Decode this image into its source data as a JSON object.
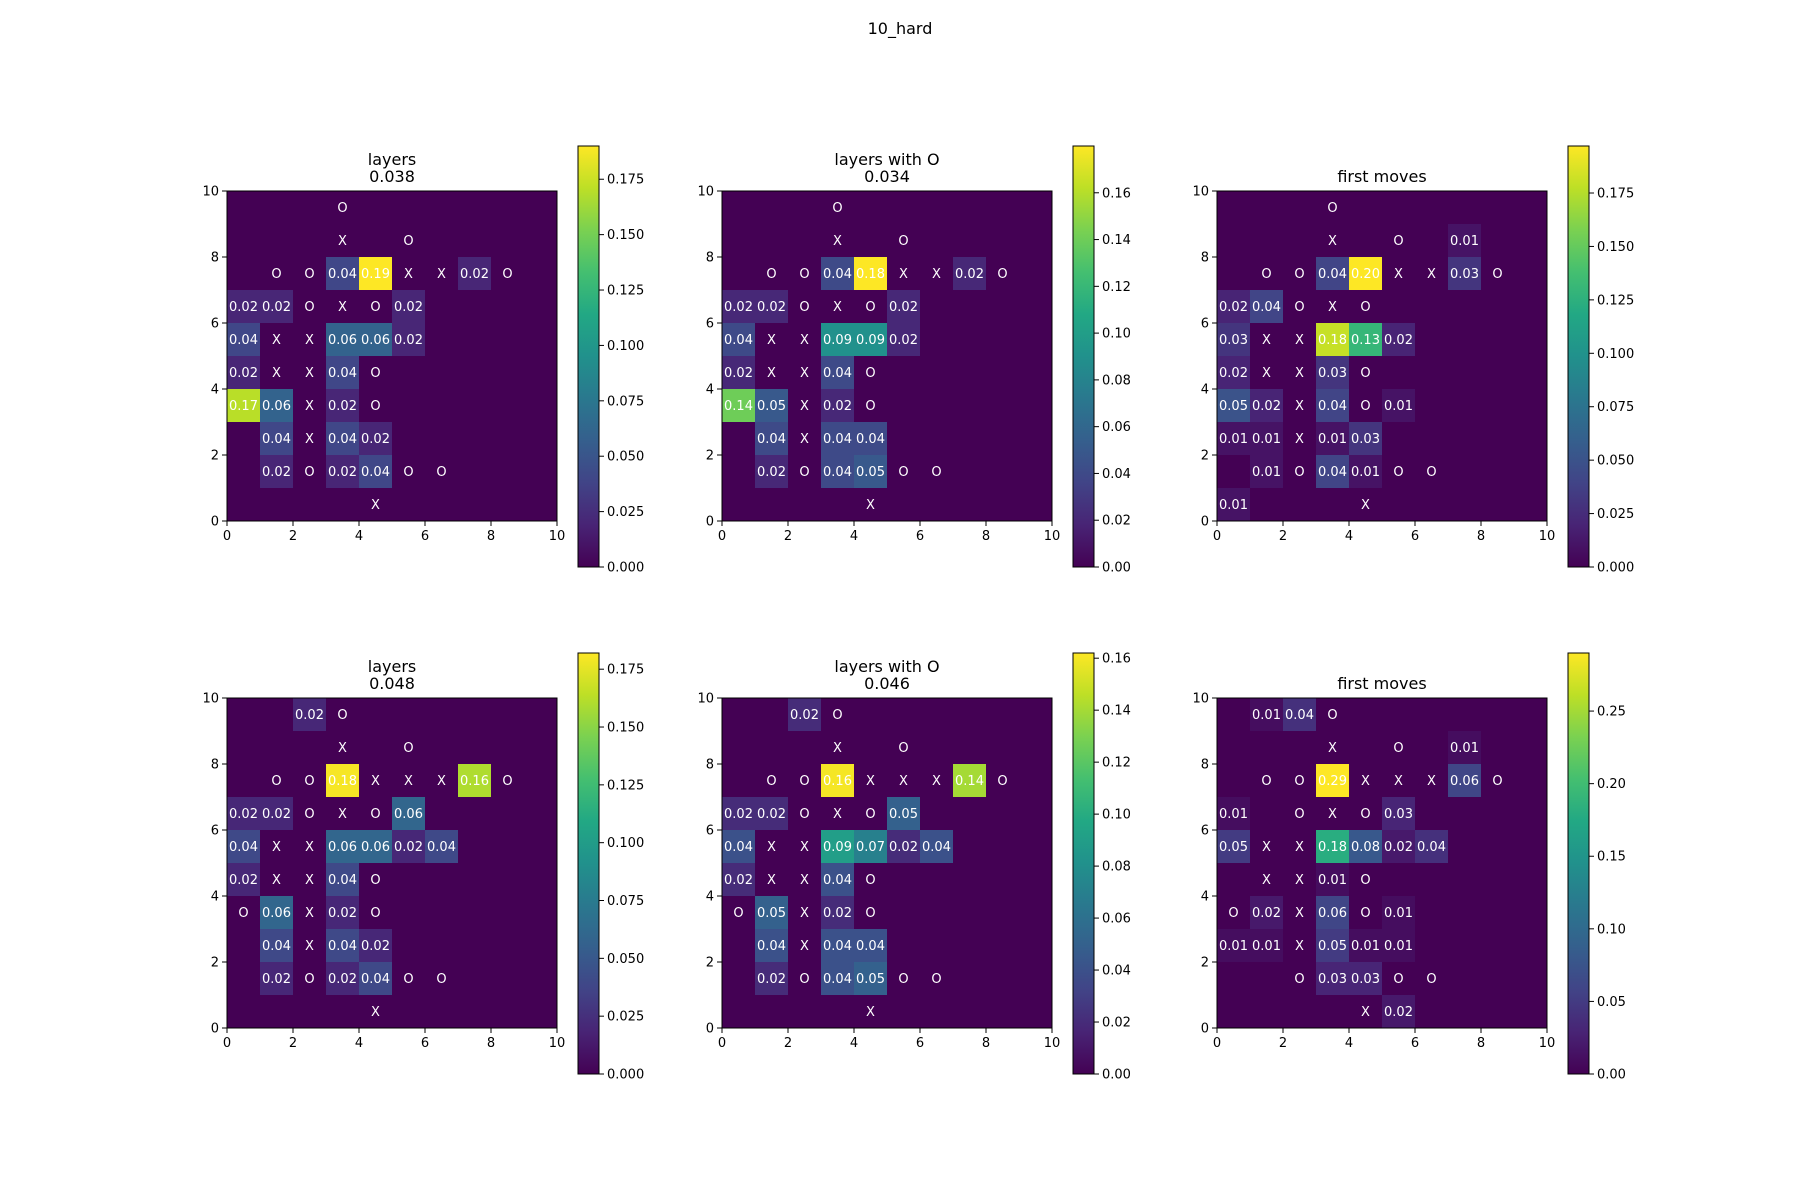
{
  "figure": {
    "suptitle": "10_hard"
  },
  "chart_data": [
    {
      "type": "heatmap",
      "title": "layers\n0.038",
      "xlim": [
        0,
        10
      ],
      "ylim": [
        0,
        10
      ],
      "xticks": [
        "0",
        "2",
        "4",
        "6",
        "8",
        "10"
      ],
      "yticks": [
        "0",
        "2",
        "4",
        "6",
        "8",
        "10"
      ],
      "colorbar": {
        "vmin": 0,
        "vmax": 0.19,
        "ticks": [
          "0.000",
          "0.025",
          "0.050",
          "0.075",
          "0.100",
          "0.125",
          "0.150",
          "0.175"
        ]
      },
      "grid": false,
      "cells": [
        [
          "",
          "",
          "",
          "O",
          "",
          "",
          "",
          "",
          "",
          ""
        ],
        [
          "",
          "",
          "",
          "X",
          "",
          "O",
          "",
          "",
          "",
          ""
        ],
        [
          "",
          "O",
          "O",
          "0.04",
          "0.19",
          "X",
          "X",
          "0.02",
          "O",
          ""
        ],
        [
          "0.02",
          "0.02",
          "O",
          "X",
          "O",
          "0.02",
          "",
          "",
          "",
          ""
        ],
        [
          "0.04",
          "X",
          "X",
          "0.06",
          "0.06",
          "0.02",
          "",
          "",
          "",
          ""
        ],
        [
          "0.02",
          "X",
          "X",
          "0.04",
          "O",
          "",
          "",
          "",
          "",
          ""
        ],
        [
          "0.17",
          "0.06",
          "X",
          "0.02",
          "O",
          "",
          "",
          "",
          "",
          ""
        ],
        [
          "",
          "0.04",
          "X",
          "0.04",
          "0.02",
          "",
          "",
          "",
          "",
          ""
        ],
        [
          "",
          "0.02",
          "O",
          "0.02",
          "0.04",
          "O",
          "O",
          "",
          "",
          ""
        ],
        [
          "",
          "",
          "",
          "",
          "X",
          "",
          "",
          "",
          "",
          ""
        ]
      ]
    },
    {
      "type": "heatmap",
      "title": "layers with O\n0.034",
      "xlim": [
        0,
        10
      ],
      "ylim": [
        0,
        10
      ],
      "xticks": [
        "0",
        "2",
        "4",
        "6",
        "8",
        "10"
      ],
      "yticks": [
        "0",
        "2",
        "4",
        "6",
        "8",
        "10"
      ],
      "colorbar": {
        "vmin": 0,
        "vmax": 0.18,
        "ticks": [
          "0.00",
          "0.02",
          "0.04",
          "0.06",
          "0.08",
          "0.10",
          "0.12",
          "0.14",
          "0.16"
        ]
      },
      "grid": false,
      "cells": [
        [
          "",
          "",
          "",
          "O",
          "",
          "",
          "",
          "",
          "",
          ""
        ],
        [
          "",
          "",
          "",
          "X",
          "",
          "O",
          "",
          "",
          "",
          ""
        ],
        [
          "",
          "O",
          "O",
          "0.04",
          "0.18",
          "X",
          "X",
          "0.02",
          "O",
          ""
        ],
        [
          "0.02",
          "0.02",
          "O",
          "X",
          "O",
          "0.02",
          "",
          "",
          "",
          ""
        ],
        [
          "0.04",
          "X",
          "X",
          "0.09",
          "0.09",
          "0.02",
          "",
          "",
          "",
          ""
        ],
        [
          "0.02",
          "X",
          "X",
          "0.04",
          "O",
          "",
          "",
          "",
          "",
          ""
        ],
        [
          "0.14",
          "0.05",
          "X",
          "0.02",
          "O",
          "",
          "",
          "",
          "",
          ""
        ],
        [
          "",
          "0.04",
          "X",
          "0.04",
          "0.04",
          "",
          "",
          "",
          "",
          ""
        ],
        [
          "",
          "0.02",
          "O",
          "0.04",
          "0.05",
          "O",
          "O",
          "",
          "",
          ""
        ],
        [
          "",
          "",
          "",
          "",
          "X",
          "",
          "",
          "",
          "",
          ""
        ]
      ]
    },
    {
      "type": "heatmap",
      "title": "first moves",
      "xlim": [
        0,
        10
      ],
      "ylim": [
        0,
        10
      ],
      "xticks": [
        "0",
        "2",
        "4",
        "6",
        "8",
        "10"
      ],
      "yticks": [
        "0",
        "2",
        "4",
        "6",
        "8",
        "10"
      ],
      "colorbar": {
        "vmin": 0,
        "vmax": 0.197,
        "ticks": [
          "0.000",
          "0.025",
          "0.050",
          "0.075",
          "0.100",
          "0.125",
          "0.150",
          "0.175"
        ]
      },
      "grid": false,
      "cells": [
        [
          "",
          "",
          "",
          "O",
          "",
          "",
          "",
          "",
          "",
          ""
        ],
        [
          "",
          "",
          "",
          "X",
          "",
          "O",
          "",
          "0.01",
          "",
          ""
        ],
        [
          "",
          "O",
          "O",
          "0.04",
          "0.20",
          "X",
          "X",
          "0.03",
          "O",
          ""
        ],
        [
          "0.02",
          "0.04",
          "O",
          "X",
          "O",
          "",
          "",
          "",
          "",
          ""
        ],
        [
          "0.03",
          "X",
          "X",
          "0.18",
          "0.13",
          "0.02",
          "",
          "",
          "",
          ""
        ],
        [
          "0.02",
          "X",
          "X",
          "0.03",
          "O",
          "",
          "",
          "",
          "",
          ""
        ],
        [
          "0.05",
          "0.02",
          "X",
          "0.04",
          "O",
          "0.01",
          "",
          "",
          "",
          ""
        ],
        [
          "0.01",
          "0.01",
          "X",
          "0.01",
          "0.03",
          "",
          "",
          "",
          "",
          ""
        ],
        [
          "",
          "0.01",
          "O",
          "0.04",
          "0.01",
          "O",
          "O",
          "",
          "",
          ""
        ],
        [
          "0.01",
          "",
          "",
          "",
          "X",
          "",
          "",
          "",
          "",
          ""
        ]
      ]
    },
    {
      "type": "heatmap",
      "title": "layers\n0.048",
      "xlim": [
        0,
        10
      ],
      "ylim": [
        0,
        10
      ],
      "xticks": [
        "0",
        "2",
        "4",
        "6",
        "8",
        "10"
      ],
      "yticks": [
        "0",
        "2",
        "4",
        "6",
        "8",
        "10"
      ],
      "colorbar": {
        "vmin": 0,
        "vmax": 0.182,
        "ticks": [
          "0.000",
          "0.025",
          "0.050",
          "0.075",
          "0.100",
          "0.125",
          "0.150",
          "0.175"
        ]
      },
      "grid": false,
      "cells": [
        [
          "",
          "",
          "0.02",
          "O",
          "",
          "",
          "",
          "",
          "",
          ""
        ],
        [
          "",
          "",
          "",
          "X",
          "",
          "O",
          "",
          "",
          "",
          ""
        ],
        [
          "",
          "O",
          "O",
          "0.18",
          "X",
          "X",
          "X",
          "0.16",
          "O",
          ""
        ],
        [
          "0.02",
          "0.02",
          "O",
          "X",
          "O",
          "0.06",
          "",
          "",
          "",
          ""
        ],
        [
          "0.04",
          "X",
          "X",
          "0.06",
          "0.06",
          "0.02",
          "0.04",
          "",
          "",
          ""
        ],
        [
          "0.02",
          "X",
          "X",
          "0.04",
          "O",
          "",
          "",
          "",
          "",
          ""
        ],
        [
          "O",
          "0.06",
          "X",
          "0.02",
          "O",
          "",
          "",
          "",
          "",
          ""
        ],
        [
          "",
          "0.04",
          "X",
          "0.04",
          "0.02",
          "",
          "",
          "",
          "",
          ""
        ],
        [
          "",
          "0.02",
          "O",
          "0.02",
          "0.04",
          "O",
          "O",
          "",
          "",
          ""
        ],
        [
          "",
          "",
          "",
          "",
          "X",
          "",
          "",
          "",
          "",
          ""
        ]
      ]
    },
    {
      "type": "heatmap",
      "title": "layers with O\n0.046",
      "xlim": [
        0,
        10
      ],
      "ylim": [
        0,
        10
      ],
      "xticks": [
        "0",
        "2",
        "4",
        "6",
        "8",
        "10"
      ],
      "yticks": [
        "0",
        "2",
        "4",
        "6",
        "8",
        "10"
      ],
      "colorbar": {
        "vmin": 0,
        "vmax": 0.162,
        "ticks": [
          "0.00",
          "0.02",
          "0.04",
          "0.06",
          "0.08",
          "0.10",
          "0.12",
          "0.14",
          "0.16"
        ]
      },
      "grid": false,
      "cells": [
        [
          "",
          "",
          "0.02",
          "O",
          "",
          "",
          "",
          "",
          "",
          ""
        ],
        [
          "",
          "",
          "",
          "X",
          "",
          "O",
          "",
          "",
          "",
          ""
        ],
        [
          "",
          "O",
          "O",
          "0.16",
          "X",
          "X",
          "X",
          "0.14",
          "O",
          ""
        ],
        [
          "0.02",
          "0.02",
          "O",
          "X",
          "O",
          "0.05",
          "",
          "",
          "",
          ""
        ],
        [
          "0.04",
          "X",
          "X",
          "0.09",
          "0.07",
          "0.02",
          "0.04",
          "",
          "",
          ""
        ],
        [
          "0.02",
          "X",
          "X",
          "0.04",
          "O",
          "",
          "",
          "",
          "",
          ""
        ],
        [
          "O",
          "0.05",
          "X",
          "0.02",
          "O",
          "",
          "",
          "",
          "",
          ""
        ],
        [
          "",
          "0.04",
          "X",
          "0.04",
          "0.04",
          "",
          "",
          "",
          "",
          ""
        ],
        [
          "",
          "0.02",
          "O",
          "0.04",
          "0.05",
          "O",
          "O",
          "",
          "",
          ""
        ],
        [
          "",
          "",
          "",
          "",
          "X",
          "",
          "",
          "",
          "",
          ""
        ]
      ]
    },
    {
      "type": "heatmap",
      "title": "first moves",
      "xlim": [
        0,
        10
      ],
      "ylim": [
        0,
        10
      ],
      "xticks": [
        "0",
        "2",
        "4",
        "6",
        "8",
        "10"
      ],
      "yticks": [
        "0",
        "2",
        "4",
        "6",
        "8",
        "10"
      ],
      "colorbar": {
        "vmin": 0,
        "vmax": 0.29,
        "ticks": [
          "0.00",
          "0.05",
          "0.10",
          "0.15",
          "0.20",
          "0.25"
        ]
      },
      "grid": false,
      "cells": [
        [
          "",
          "0.01",
          "0.04",
          "O",
          "",
          "",
          "",
          "",
          "",
          ""
        ],
        [
          "",
          "",
          "",
          "X",
          "",
          "O",
          "",
          "0.01",
          "",
          ""
        ],
        [
          "",
          "O",
          "O",
          "0.29",
          "X",
          "X",
          "X",
          "0.06",
          "O",
          ""
        ],
        [
          "0.01",
          "",
          "O",
          "X",
          "O",
          "0.03",
          "",
          "",
          "",
          ""
        ],
        [
          "0.05",
          "X",
          "X",
          "0.18",
          "0.08",
          "0.02",
          "0.04",
          "",
          "",
          ""
        ],
        [
          "",
          "X",
          "X",
          "0.01",
          "O",
          "",
          "",
          "",
          "",
          ""
        ],
        [
          "O",
          "0.02",
          "X",
          "0.06",
          "O",
          "0.01",
          "",
          "",
          "",
          ""
        ],
        [
          "0.01",
          "0.01",
          "X",
          "0.05",
          "0.01",
          "0.01",
          "",
          "",
          "",
          ""
        ],
        [
          "",
          "",
          "O",
          "0.03",
          "0.03",
          "O",
          "O",
          "",
          "",
          ""
        ],
        [
          "",
          "",
          "",
          "",
          "X",
          "0.02",
          "",
          "",
          "",
          ""
        ]
      ]
    }
  ]
}
